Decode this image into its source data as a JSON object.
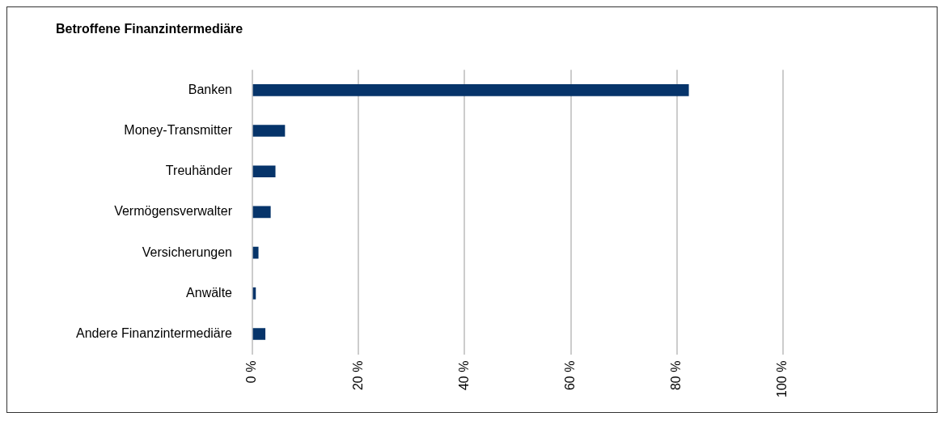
{
  "chart_data": {
    "type": "bar",
    "orientation": "horizontal",
    "title": "Betroffene Finanzintermediäre",
    "categories": [
      "Banken",
      "Money-Transmitter",
      "Treuhänder",
      "Vermögensverwalter",
      "Versicherungen",
      "Anwälte",
      "Andere Finanzintermediäre"
    ],
    "values": [
      82.2,
      6.1,
      4.3,
      3.4,
      1.1,
      0.6,
      2.4
    ],
    "color": "#06346a",
    "xlim": [
      0,
      100
    ],
    "xticks": [
      {
        "value": 0,
        "label": "0 %"
      },
      {
        "value": 20,
        "label": "20 %"
      },
      {
        "value": 40,
        "label": "40 %"
      },
      {
        "value": 60,
        "label": "60 %"
      },
      {
        "value": 80,
        "label": "80 %"
      },
      {
        "value": 100,
        "label": "100 %"
      }
    ],
    "grid": "x",
    "legend": false
  }
}
